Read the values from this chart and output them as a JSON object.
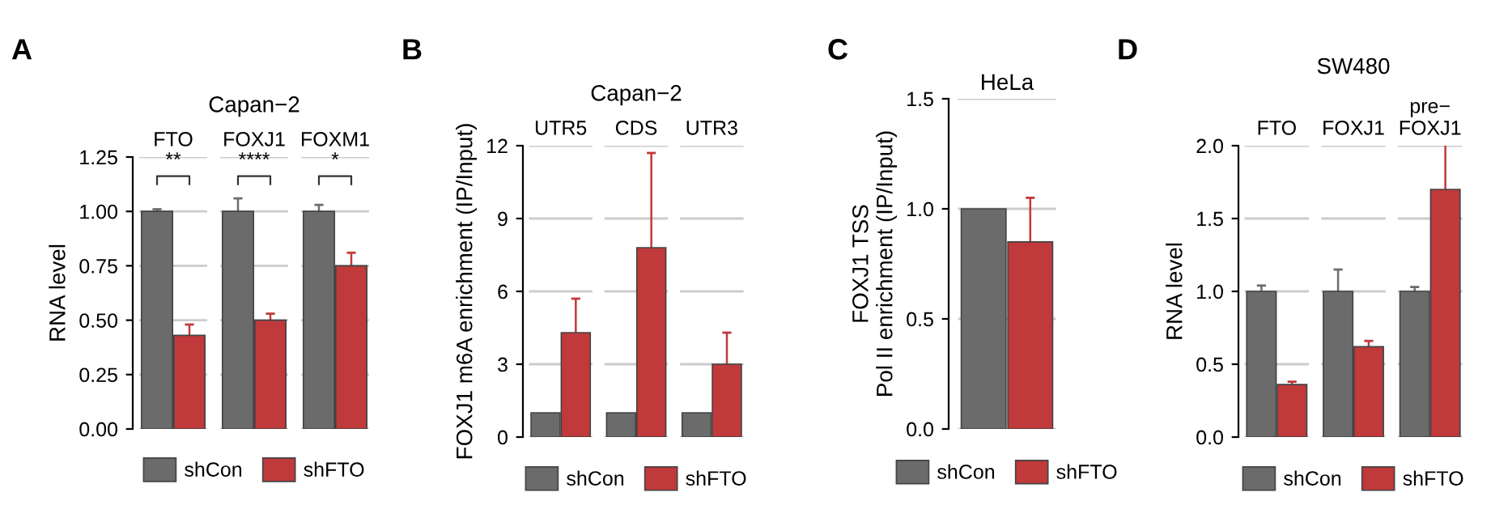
{
  "chart_data": [
    {
      "type": "bar",
      "title": "Capan−2",
      "ylabel": "RNA level",
      "categories": [
        "FTO",
        "FOXJ1",
        "FOXM1"
      ],
      "series": [
        {
          "name": "shCon",
          "color": "#6b6b6b",
          "values": [
            1.0,
            1.0,
            1.0
          ],
          "errors": [
            0.01,
            0.06,
            0.03
          ]
        },
        {
          "name": "shFTO",
          "color": "#c0393b",
          "values": [
            0.43,
            0.5,
            0.75
          ],
          "errors": [
            0.05,
            0.03,
            0.06
          ]
        }
      ],
      "ylim": [
        0,
        1.25
      ],
      "yticks": [
        {
          "value": 0,
          "label": "0.00"
        },
        {
          "value": 0.25,
          "label": "0.25"
        },
        {
          "value": 0.5,
          "label": "0.50"
        },
        {
          "value": 0.75,
          "label": "0.75"
        },
        {
          "value": 1,
          "label": "1.00"
        },
        {
          "value": 1.25,
          "label": "1.25"
        }
      ],
      "grid": "y",
      "legend": "bottom",
      "annotations": [
        "A",
        "**",
        "****",
        "*"
      ]
    },
    {
      "type": "bar",
      "title": "Capan−2",
      "ylabel": "FOXJ1 m6A enrichment (IP/Input)",
      "categories": [
        "UTR5",
        "CDS",
        "UTR3"
      ],
      "series": [
        {
          "name": "shCon",
          "color": "#6b6b6b",
          "values": [
            1.0,
            1.0,
            1.0
          ]
        },
        {
          "name": "shFTO",
          "color": "#c0393b",
          "values": [
            4.3,
            7.8,
            3.0
          ],
          "errors": [
            1.4,
            3.9,
            1.3
          ]
        }
      ],
      "ylim": [
        0,
        12
      ],
      "yticks": [
        0,
        3,
        6,
        9,
        12
      ],
      "grid": "y",
      "legend": "bottom",
      "annotations": [
        "B"
      ]
    },
    {
      "type": "bar",
      "title": "HeLa",
      "ylabel": "FOXJ1 TSS\nPol II enrichment (IP/Input)",
      "categories": [
        null
      ],
      "series": [
        {
          "name": "shCon",
          "color": "#6b6b6b",
          "values": [
            1.0
          ]
        },
        {
          "name": "shFTO",
          "color": "#c0393b",
          "values": [
            0.85
          ],
          "errors": [
            0.2
          ]
        }
      ],
      "ylim": [
        0,
        1.5
      ],
      "yticks": [
        {
          "value": 0,
          "label": "0.0"
        },
        {
          "value": 0.5,
          "label": "0.5"
        },
        {
          "value": 1,
          "label": "1.0"
        },
        {
          "value": 1.5,
          "label": "1.5"
        }
      ],
      "grid": "y",
      "legend": "bottom",
      "annotations": [
        "C"
      ]
    },
    {
      "type": "bar",
      "title": "SW480",
      "ylabel": "RNA level",
      "categories": [
        "FTO",
        "FOXJ1",
        "pre−\nFOXJ1"
      ],
      "series": [
        {
          "name": "shCon",
          "color": "#6b6b6b",
          "values": [
            1.0,
            1.0,
            1.0
          ],
          "errors": [
            0.04,
            0.15,
            0.03
          ]
        },
        {
          "name": "shFTO",
          "color": "#c0393b",
          "values": [
            0.36,
            0.62,
            1.7
          ],
          "errors": [
            0.02,
            0.04,
            0.31
          ]
        }
      ],
      "ylim": [
        0,
        2
      ],
      "yticks": [
        {
          "value": 0,
          "label": "0.0"
        },
        {
          "value": 0.5,
          "label": "0.5"
        },
        {
          "value": 1,
          "label": "1.0"
        },
        {
          "value": 1.5,
          "label": "1.5"
        },
        {
          "value": 2,
          "label": "2.0"
        }
      ],
      "grid": "y",
      "legend": "bottom",
      "annotations": [
        "D"
      ]
    }
  ]
}
